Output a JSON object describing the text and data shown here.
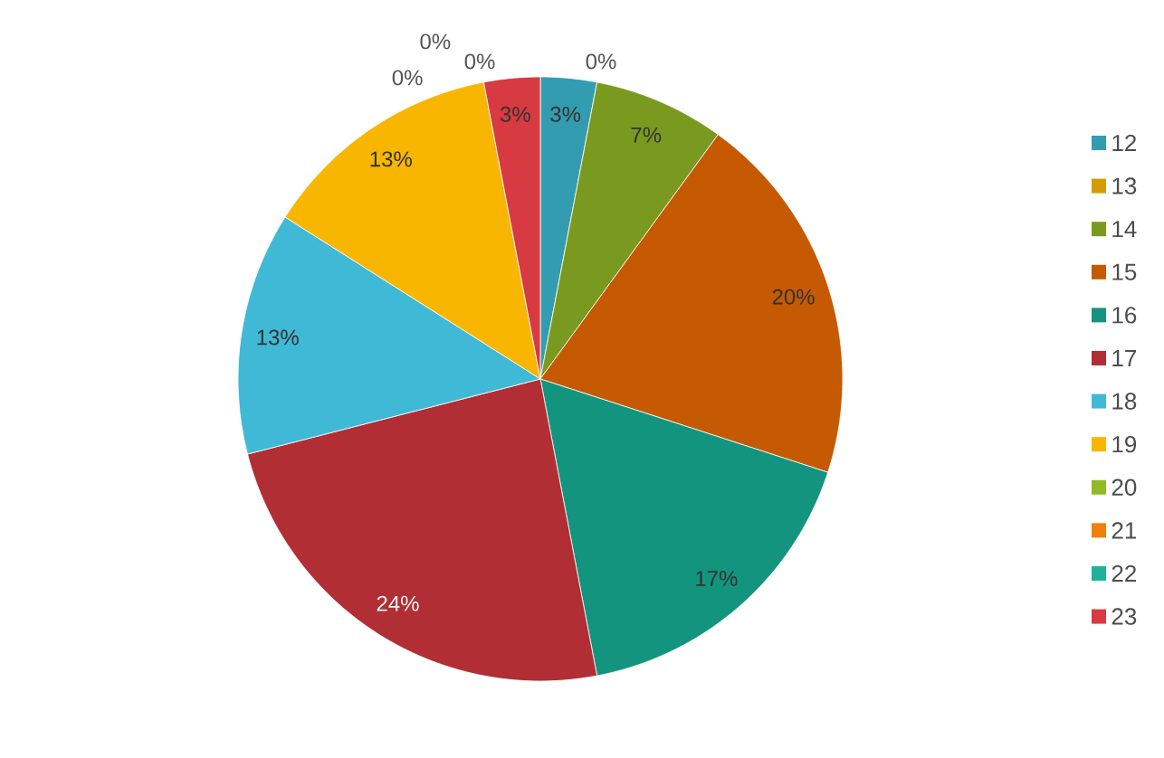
{
  "chart_data": {
    "type": "pie",
    "categories": [
      "12",
      "13",
      "14",
      "15",
      "16",
      "17",
      "18",
      "19",
      "20",
      "21",
      "22",
      "23"
    ],
    "values": [
      3,
      0,
      7,
      20,
      17,
      24,
      13,
      13,
      0,
      0,
      0,
      3
    ],
    "value_labels": [
      "3%",
      "0%",
      "7%",
      "20%",
      "17%",
      "24%",
      "13%",
      "13%",
      "0%",
      "0%",
      "0%",
      "3%"
    ],
    "colors": [
      "#349cb0",
      "#d59b00",
      "#7a9a1f",
      "#c55a02",
      "#13947f",
      "#b02e34",
      "#40b9d6",
      "#f9b600",
      "#92ba24",
      "#f07f0b",
      "#1eb29b",
      "#d73a40"
    ],
    "legend": "right"
  }
}
